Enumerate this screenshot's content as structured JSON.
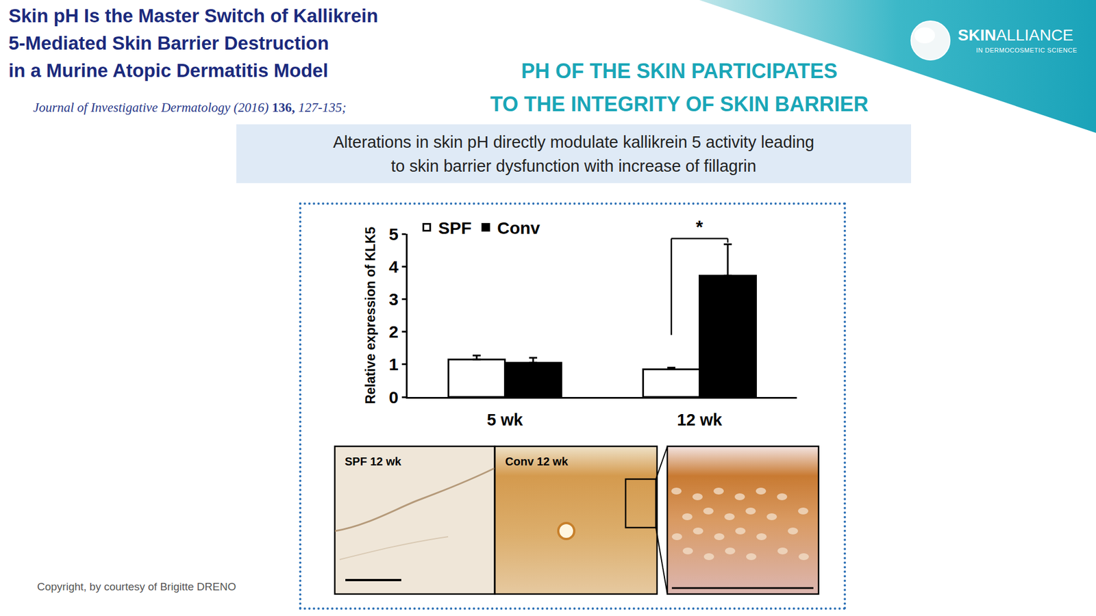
{
  "header": {
    "title_lines": [
      "Skin pH Is the Master Switch of Kallikrein",
      "5-Mediated Skin Barrier Destruction",
      "in a Murine Atopic Dermatitis Model"
    ],
    "journal": "Journal of Investigative Dermatology (2016)",
    "volume": "136,",
    "pages": "127-135;",
    "heading_lines": [
      "PH OF THE SKIN PARTICIPATES",
      "TO THE INTEGRITY OF SKIN BARRIER"
    ],
    "summary_lines": [
      "Alterations in skin pH directly modulate kallikrein 5 activity leading",
      "to skin barrier dysfunction with increase of fillagrin"
    ]
  },
  "logo": {
    "bold": "SKIN",
    "light": "ALLIANCE",
    "tagline": "IN DERMOCOSMETIC SCIENCE"
  },
  "chart_data": {
    "type": "bar",
    "y_label": "Relative expression of KLK5",
    "categories": [
      "5 wk",
      "12 wk"
    ],
    "series": [
      {
        "name": "SPF",
        "color": "#ffffff",
        "values": [
          1.15,
          0.85
        ],
        "errors": [
          0.12,
          0.05
        ]
      },
      {
        "name": "Conv",
        "color": "#000000",
        "values": [
          1.05,
          3.72
        ],
        "errors": [
          0.15,
          0.96
        ]
      }
    ],
    "ylim": [
      0,
      5
    ],
    "yticks": [
      0,
      1,
      2,
      3,
      4,
      5
    ],
    "grid": false,
    "legend": "top-left",
    "annotations": [
      {
        "text": "*",
        "category": "12 wk"
      }
    ]
  },
  "images": {
    "labels": [
      "SPF 12 wk",
      "Conv 12 wk"
    ]
  },
  "footer": "Copyright, by courtesy of Brigitte DRENO"
}
